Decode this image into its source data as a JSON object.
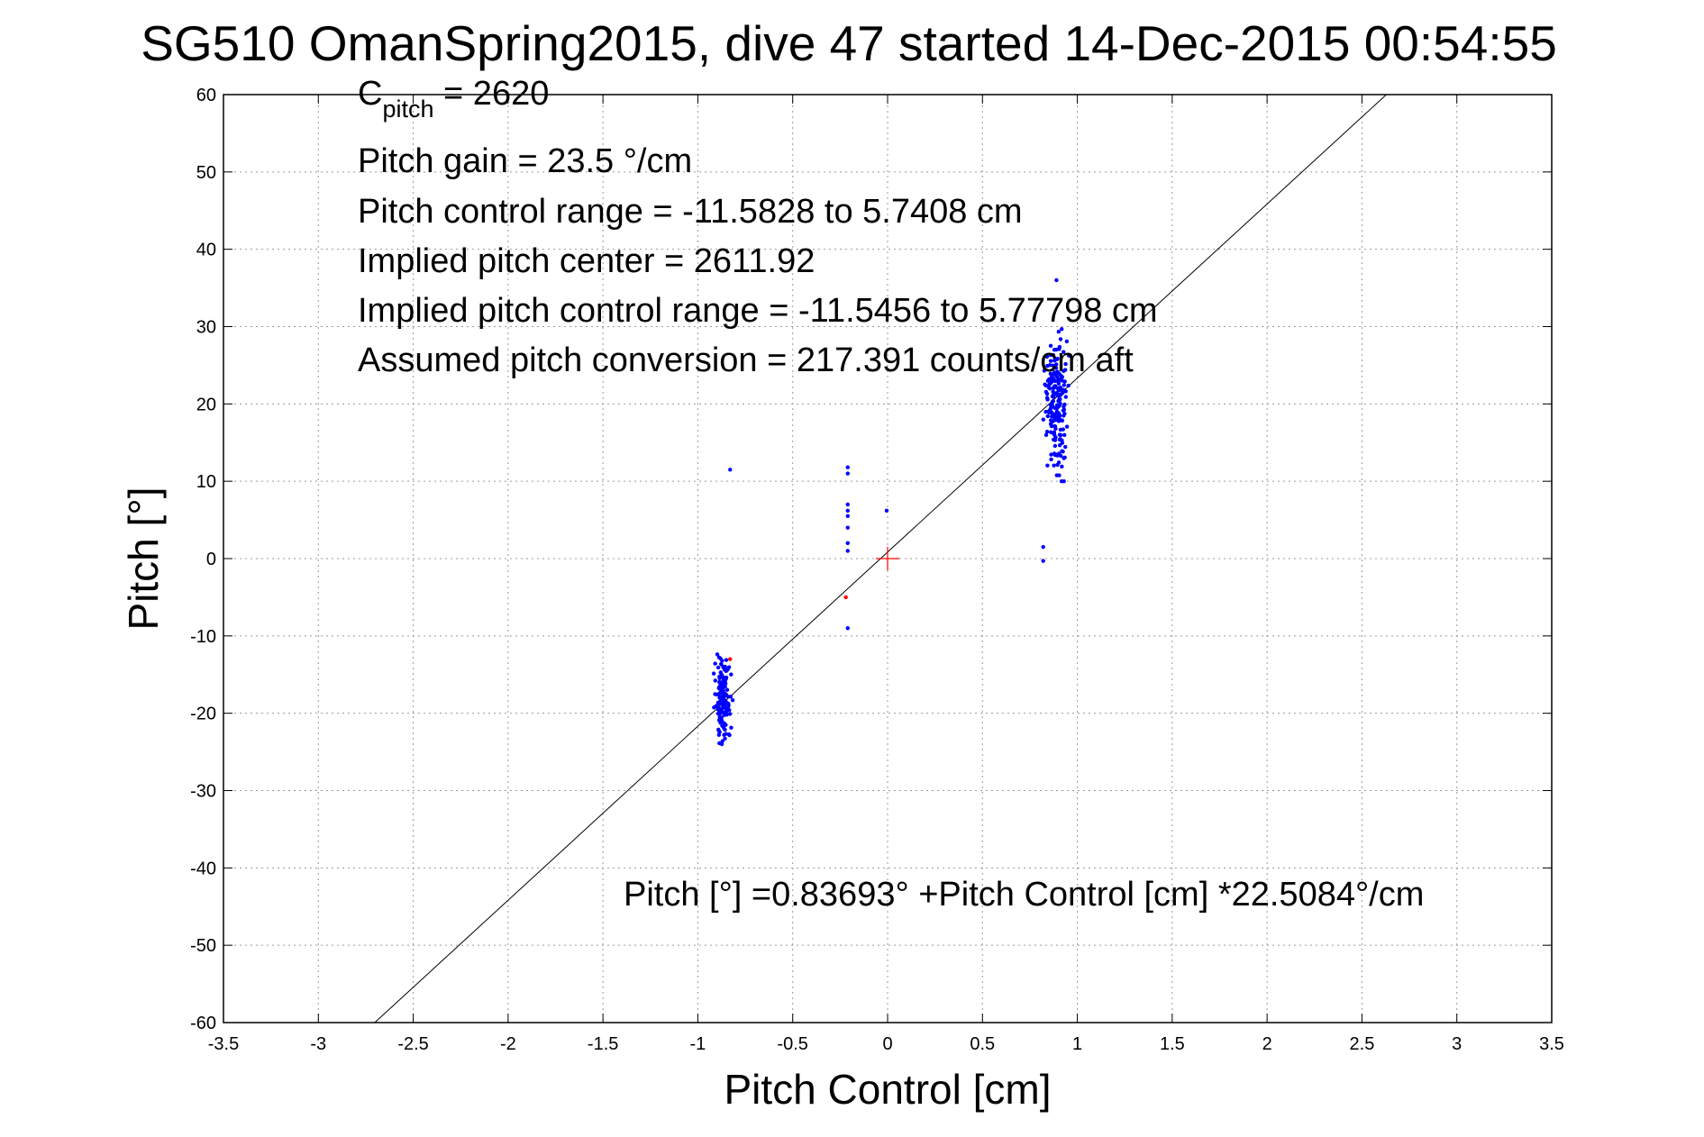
{
  "chart_data": {
    "type": "scatter",
    "title": "SG510 OmanSpring2015, dive 47 started 14-Dec-2015 00:54:55",
    "xlabel": "Pitch Control [cm]",
    "ylabel": "Pitch [°]",
    "xlim": [
      -3.5,
      3.5
    ],
    "ylim": [
      -60,
      60
    ],
    "xticks": [
      -3.5,
      -3,
      -2.5,
      -2,
      -1.5,
      -1,
      -0.5,
      0,
      0.5,
      1,
      1.5,
      2,
      2.5,
      3,
      3.5
    ],
    "xtick_labels": [
      "-3.5",
      "-3",
      "-2.5",
      "-2",
      "-1.5",
      "-1",
      "-0.5",
      "0",
      "0.5",
      "1",
      "1.5",
      "2",
      "2.5",
      "3",
      "3.5"
    ],
    "yticks": [
      60,
      50,
      40,
      30,
      20,
      10,
      0,
      -10,
      -20,
      -30,
      -40,
      -50,
      -60
    ],
    "ytick_labels": [
      "60",
      "50",
      "40",
      "30",
      "20",
      "10",
      "0",
      "-10",
      "-20",
      "-30",
      "-40",
      "-50",
      "-60"
    ],
    "grid": true,
    "annotations": {
      "c_pitch_main": "C",
      "c_pitch_sub": "pitch",
      "c_pitch_value": " = 2620",
      "pitch_gain": "Pitch gain = 23.5 °/cm",
      "pitch_control_range": "Pitch control range = -11.5828 to 5.7408 cm",
      "implied_pitch_center": "Implied pitch center = 2611.92",
      "implied_pitch_control_range": "Implied pitch control range = -11.5456 to 5.77798 cm",
      "assumed_pitch_conversion": "Assumed pitch conversion = 217.391 counts/cm aft",
      "fit_equation": "Pitch [°] =0.83693° +Pitch Control [cm] *22.5084°/cm"
    },
    "fit_line": {
      "intercept": 0.83693,
      "slope": 22.5084
    },
    "center_marker": {
      "x": 0,
      "y": 0
    },
    "series": [
      {
        "color": "#0000ff",
        "clusters": [
          {
            "x_center": -0.87,
            "x_spread": 0.06,
            "y_min": -24,
            "y_max": -10,
            "y_mean": -18,
            "count": 150
          },
          {
            "x_center": 0.89,
            "x_spread": 0.08,
            "y_min": 10,
            "y_max": 36,
            "y_mean": 20,
            "count": 200
          }
        ],
        "points": [
          [
            -0.83,
            11.5
          ],
          [
            -0.21,
            11.8
          ],
          [
            -0.21,
            7.0
          ],
          [
            -0.21,
            5.5
          ],
          [
            -0.21,
            4.0
          ],
          [
            -0.21,
            2.0
          ],
          [
            -0.21,
            6.2
          ],
          [
            -0.21,
            1.0
          ],
          [
            -0.21,
            11.0
          ],
          [
            -0.21,
            -9.0
          ],
          [
            -0.005,
            6.2
          ],
          [
            0.82,
            1.5
          ],
          [
            0.82,
            -0.3
          ],
          [
            0.89,
            36.0
          ]
        ]
      },
      {
        "color": "#ff0000",
        "points": [
          [
            -0.22,
            -5.0
          ],
          [
            -0.83,
            -13.0
          ]
        ]
      }
    ]
  }
}
